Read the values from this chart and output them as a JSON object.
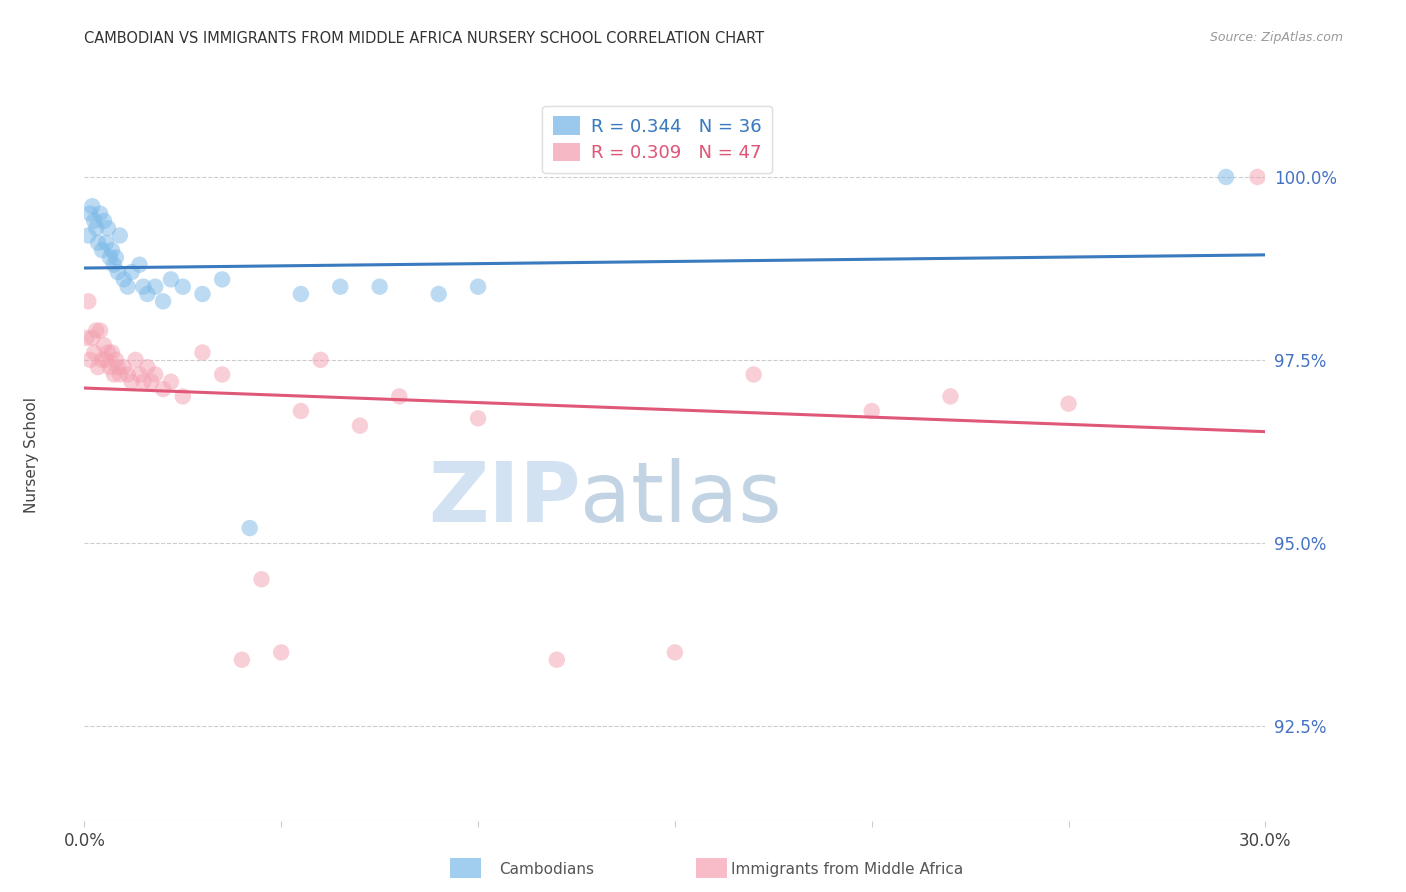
{
  "title": "CAMBODIAN VS IMMIGRANTS FROM MIDDLE AFRICA NURSERY SCHOOL CORRELATION CHART",
  "source": "Source: ZipAtlas.com",
  "ylabel": "Nursery School",
  "y_ticks": [
    92.5,
    95.0,
    97.5,
    100.0
  ],
  "y_tick_labels": [
    "92.5%",
    "95.0%",
    "97.5%",
    "100.0%"
  ],
  "xlim": [
    0.0,
    30.0
  ],
  "ylim": [
    91.2,
    101.2
  ],
  "legend_blue_r": "R = 0.344",
  "legend_blue_n": "N = 36",
  "legend_pink_r": "R = 0.309",
  "legend_pink_n": "N = 47",
  "cambodian_color": "#7ab8e8",
  "immigrant_color": "#f4a0b0",
  "trendline_blue": "#3a7abf",
  "trendline_pink": "#e05878",
  "blue_x": [
    0.1,
    0.15,
    0.2,
    0.25,
    0.3,
    0.35,
    0.4,
    0.45,
    0.5,
    0.55,
    0.6,
    0.65,
    0.7,
    0.75,
    0.8,
    0.85,
    0.9,
    1.0,
    1.1,
    1.2,
    1.4,
    1.5,
    1.6,
    1.8,
    2.0,
    2.2,
    2.5,
    3.0,
    3.5,
    4.2,
    5.5,
    6.5,
    7.5,
    9.0,
    10.0,
    29.0
  ],
  "blue_y": [
    99.2,
    99.5,
    99.6,
    99.4,
    99.3,
    99.1,
    99.5,
    99.0,
    99.4,
    99.1,
    99.3,
    98.9,
    99.0,
    98.8,
    98.9,
    98.7,
    99.2,
    98.6,
    98.5,
    98.7,
    98.8,
    98.5,
    98.4,
    98.5,
    98.3,
    98.6,
    98.5,
    98.4,
    98.6,
    95.2,
    98.4,
    98.5,
    98.5,
    98.4,
    98.5,
    100.0
  ],
  "pink_x": [
    0.05,
    0.1,
    0.15,
    0.2,
    0.25,
    0.3,
    0.35,
    0.4,
    0.45,
    0.5,
    0.55,
    0.6,
    0.65,
    0.7,
    0.75,
    0.8,
    0.85,
    0.9,
    1.0,
    1.1,
    1.2,
    1.3,
    1.4,
    1.5,
    1.6,
    1.7,
    1.8,
    2.0,
    2.2,
    2.5,
    3.0,
    3.5,
    4.0,
    4.5,
    5.0,
    5.5,
    6.0,
    7.0,
    8.0,
    10.0,
    12.0,
    15.0,
    17.0,
    20.0,
    22.0,
    25.0,
    29.8
  ],
  "pink_y": [
    97.8,
    98.3,
    97.5,
    97.8,
    97.6,
    97.9,
    97.4,
    97.9,
    97.5,
    97.7,
    97.5,
    97.6,
    97.4,
    97.6,
    97.3,
    97.5,
    97.4,
    97.3,
    97.4,
    97.3,
    97.2,
    97.5,
    97.3,
    97.2,
    97.4,
    97.2,
    97.3,
    97.1,
    97.2,
    97.0,
    97.6,
    97.3,
    93.4,
    94.5,
    93.5,
    96.8,
    97.5,
    96.6,
    97.0,
    96.7,
    93.4,
    93.5,
    97.3,
    96.8,
    97.0,
    96.9,
    100.0
  ]
}
